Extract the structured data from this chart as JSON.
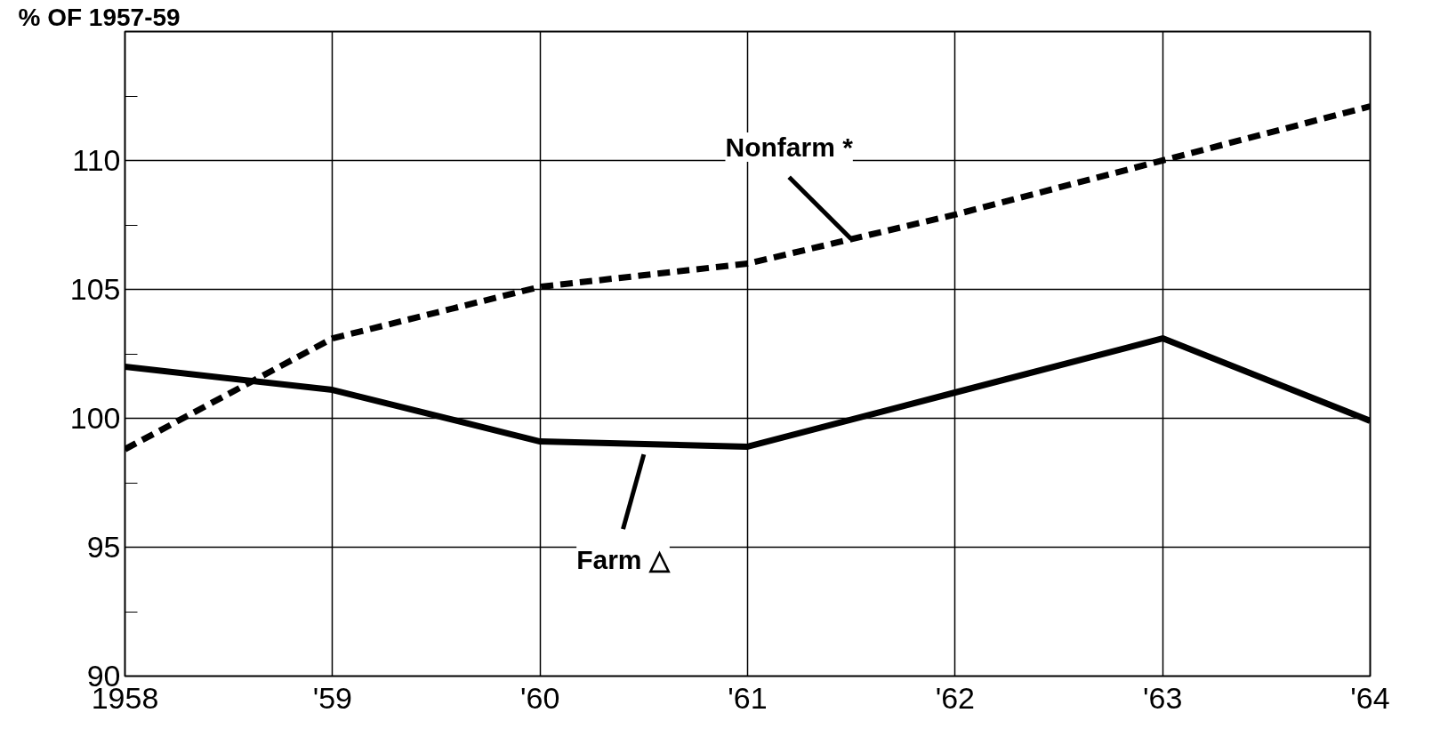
{
  "chart_data": {
    "type": "line",
    "ylabel": "% OF 1957-59",
    "x": [
      1958,
      1959,
      1960,
      1961,
      1962,
      1963,
      1964
    ],
    "xlim": [
      1958,
      1964
    ],
    "xticks": [
      {
        "value": 1958,
        "label": "1958"
      },
      {
        "value": 1959,
        "label": "'59"
      },
      {
        "value": 1960,
        "label": "'60"
      },
      {
        "value": 1961,
        "label": "'61"
      },
      {
        "value": 1962,
        "label": "'62"
      },
      {
        "value": 1963,
        "label": "'63"
      },
      {
        "value": 1964,
        "label": "'64"
      }
    ],
    "ylim": [
      90,
      115
    ],
    "yticks": [
      90,
      {
        "value": 92.5,
        "label": null
      },
      95,
      {
        "value": 97.5,
        "label": null
      },
      100,
      {
        "value": 102.5,
        "label": null
      },
      105,
      {
        "value": 107.5,
        "label": null
      },
      110,
      {
        "value": 112.5,
        "label": null
      }
    ],
    "grid": true,
    "series": [
      {
        "name": "Nonfarm *",
        "color": "#000000",
        "line_style": "dashed",
        "values": [
          98.8,
          103.1,
          105.1,
          106.0,
          107.9,
          110.0,
          112.1
        ]
      },
      {
        "name": "Farm △",
        "color": "#000000",
        "line_style": "solid",
        "values": [
          102.0,
          101.1,
          99.1,
          98.9,
          101.0,
          103.1,
          99.9
        ]
      }
    ]
  }
}
